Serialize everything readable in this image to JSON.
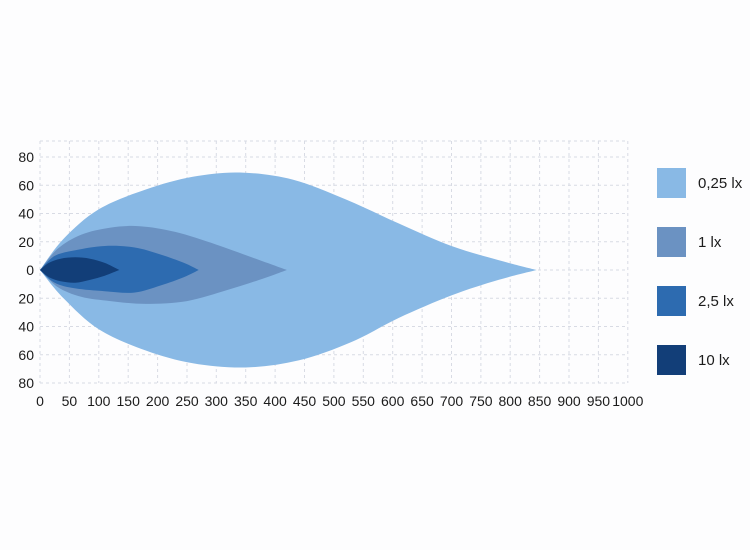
{
  "chart_data": {
    "type": "area",
    "title": "",
    "xlabel": "",
    "ylabel": "",
    "xlim": [
      0,
      1000
    ],
    "ylim": [
      -80,
      80
    ],
    "grid": {
      "on": true,
      "color": "#d8dbe4",
      "dash": "3 3",
      "x_step": 50,
      "y_step": 20
    },
    "x_ticks": [
      {
        "v": 0,
        "label": "0"
      },
      {
        "v": 50,
        "label": "50"
      },
      {
        "v": 100,
        "label": "100"
      },
      {
        "v": 150,
        "label": "150"
      },
      {
        "v": 200,
        "label": "200"
      },
      {
        "v": 250,
        "label": "250"
      },
      {
        "v": 300,
        "label": "300"
      },
      {
        "v": 350,
        "label": "350"
      },
      {
        "v": 400,
        "label": "400"
      },
      {
        "v": 450,
        "label": "450"
      },
      {
        "v": 500,
        "label": "500"
      },
      {
        "v": 550,
        "label": "550"
      },
      {
        "v": 600,
        "label": "600"
      },
      {
        "v": 650,
        "label": "650"
      },
      {
        "v": 700,
        "label": "700"
      },
      {
        "v": 750,
        "label": "750"
      },
      {
        "v": 800,
        "label": "800"
      },
      {
        "v": 850,
        "label": "850"
      },
      {
        "v": 900,
        "label": "900"
      },
      {
        "v": 950,
        "label": "950"
      },
      {
        "v": 1000,
        "label": "1000"
      }
    ],
    "y_ticks": [
      {
        "v": 80,
        "label": "80"
      },
      {
        "v": 60,
        "label": "60"
      },
      {
        "v": 40,
        "label": "40"
      },
      {
        "v": 20,
        "label": "20"
      },
      {
        "v": 0,
        "label": "0"
      },
      {
        "v": -20,
        "label": "20"
      },
      {
        "v": -40,
        "label": "40"
      },
      {
        "v": -60,
        "label": "60"
      },
      {
        "v": -80,
        "label": "80"
      }
    ],
    "series": [
      {
        "name": "0,25 lx",
        "level_lx": 0.25,
        "color": "#89B9E5",
        "upper": [
          [
            0,
            0
          ],
          [
            40,
            22
          ],
          [
            100,
            43
          ],
          [
            180,
            57
          ],
          [
            260,
            66
          ],
          [
            340,
            69
          ],
          [
            430,
            64
          ],
          [
            520,
            50
          ],
          [
            610,
            33
          ],
          [
            700,
            17
          ],
          [
            780,
            7
          ],
          [
            845,
            0
          ]
        ],
        "lower": [
          [
            0,
            0
          ],
          [
            40,
            -20
          ],
          [
            100,
            -42
          ],
          [
            180,
            -57
          ],
          [
            260,
            -66
          ],
          [
            350,
            -69
          ],
          [
            440,
            -64
          ],
          [
            530,
            -51
          ],
          [
            610,
            -34
          ],
          [
            700,
            -18
          ],
          [
            780,
            -7
          ],
          [
            845,
            0
          ]
        ]
      },
      {
        "name": "1 lx",
        "level_lx": 1,
        "color": "#6B92C2",
        "upper": [
          [
            0,
            0
          ],
          [
            30,
            15
          ],
          [
            70,
            25
          ],
          [
            120,
            30
          ],
          [
            170,
            31
          ],
          [
            230,
            27
          ],
          [
            300,
            18
          ],
          [
            360,
            9
          ],
          [
            420,
            0
          ]
        ],
        "lower": [
          [
            0,
            0
          ],
          [
            30,
            -12
          ],
          [
            70,
            -19
          ],
          [
            120,
            -22
          ],
          [
            180,
            -24
          ],
          [
            250,
            -22
          ],
          [
            320,
            -14
          ],
          [
            380,
            -6
          ],
          [
            420,
            0
          ]
        ]
      },
      {
        "name": "2,5 lx",
        "level_lx": 2.5,
        "color": "#2D6BB0",
        "upper": [
          [
            0,
            0
          ],
          [
            25,
            10
          ],
          [
            60,
            14
          ],
          [
            110,
            17
          ],
          [
            160,
            16
          ],
          [
            205,
            11
          ],
          [
            245,
            5
          ],
          [
            270,
            0
          ]
        ],
        "lower": [
          [
            0,
            0
          ],
          [
            25,
            -9
          ],
          [
            60,
            -13
          ],
          [
            110,
            -15
          ],
          [
            160,
            -16
          ],
          [
            205,
            -11
          ],
          [
            245,
            -5
          ],
          [
            270,
            0
          ]
        ]
      },
      {
        "name": "10 lx",
        "level_lx": 10,
        "color": "#123E78",
        "upper": [
          [
            0,
            0
          ],
          [
            15,
            5
          ],
          [
            35,
            8
          ],
          [
            60,
            9
          ],
          [
            85,
            8
          ],
          [
            110,
            5
          ],
          [
            135,
            0
          ]
        ],
        "lower": [
          [
            0,
            0
          ],
          [
            15,
            -5
          ],
          [
            35,
            -8
          ],
          [
            60,
            -9
          ],
          [
            85,
            -7
          ],
          [
            110,
            -4
          ],
          [
            135,
            0
          ]
        ]
      }
    ],
    "legend": {
      "position": "right",
      "items": [
        {
          "label": "0,25 lx",
          "color": "#89B9E5"
        },
        {
          "label": "1 lx",
          "color": "#6B92C2"
        },
        {
          "label": "2,5 lx",
          "color": "#2D6BB0"
        },
        {
          "label": "10 lx",
          "color": "#123E78"
        }
      ]
    }
  }
}
